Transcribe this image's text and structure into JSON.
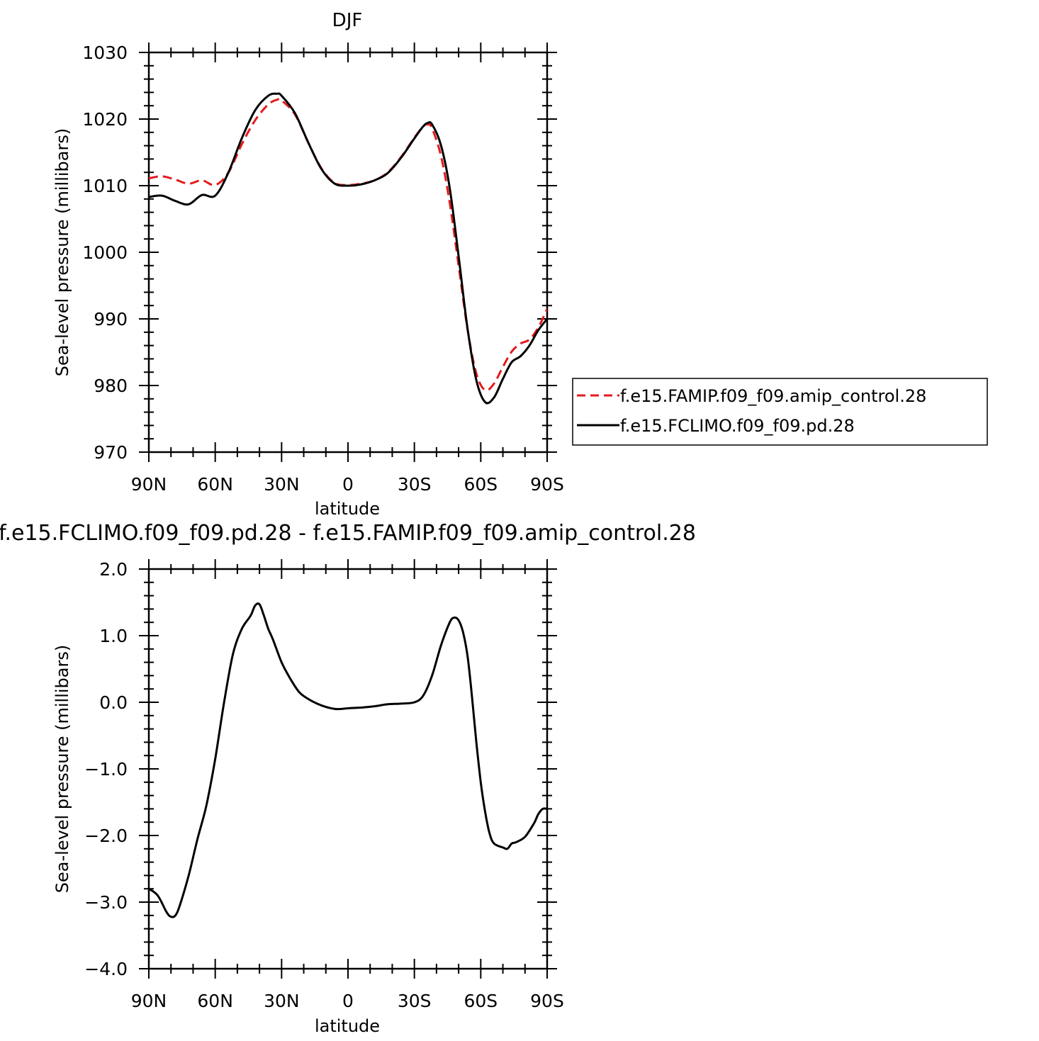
{
  "chart_data": [
    {
      "type": "line",
      "title": "DJF",
      "xlabel": "latitude",
      "ylabel": "Sea-level pressure (millibars)",
      "xlim": [
        90,
        -90
      ],
      "ylim": [
        970,
        1030
      ],
      "x_ticks": [
        {
          "value": 90,
          "label": "90N"
        },
        {
          "value": 60,
          "label": "60N"
        },
        {
          "value": 30,
          "label": "30N"
        },
        {
          "value": 0,
          "label": "0"
        },
        {
          "value": -30,
          "label": "30S"
        },
        {
          "value": -60,
          "label": "60S"
        },
        {
          "value": -90,
          "label": "90S"
        }
      ],
      "y_ticks": [
        {
          "value": 1030,
          "label": "1030"
        },
        {
          "value": 1020,
          "label": "1020"
        },
        {
          "value": 1010,
          "label": "1010"
        },
        {
          "value": 1000,
          "label": "1000"
        },
        {
          "value": 990,
          "label": "990"
        },
        {
          "value": 980,
          "label": "980"
        },
        {
          "value": 970,
          "label": "970"
        }
      ],
      "legend_position": "right",
      "x": [
        90,
        84,
        78,
        72,
        66,
        60,
        54,
        48,
        42,
        36,
        32,
        30,
        24,
        18,
        12,
        6,
        0,
        -6,
        -12,
        -18,
        -24,
        -30,
        -34,
        -36,
        -38,
        -42,
        -46,
        -50,
        -54,
        -58,
        -62,
        -66,
        -70,
        -74,
        -78,
        -82,
        -86,
        -90
      ],
      "series": [
        {
          "name": "f.e15.FAMIP.f09_f09.amip_control.28",
          "color": "#e41a1c",
          "dash": "dashed",
          "values": [
            1011.1,
            1011.4,
            1010.9,
            1010.3,
            1010.8,
            1010.1,
            1012.0,
            1016.2,
            1019.8,
            1022.2,
            1022.9,
            1022.8,
            1020.7,
            1016.5,
            1012.6,
            1010.4,
            1010.1,
            1010.3,
            1010.8,
            1012.0,
            1014.3,
            1017.2,
            1018.9,
            1019.2,
            1018.6,
            1014.5,
            1007.4,
            998.0,
            988.5,
            981.8,
            979.3,
            980.3,
            982.8,
            985.1,
            986.3,
            986.9,
            988.7,
            991.5
          ]
        },
        {
          "name": "f.e15.FCLIMO.f09_f09.pd.28",
          "color": "#000000",
          "dash": "solid",
          "values": [
            1008.3,
            1008.5,
            1007.7,
            1007.2,
            1008.6,
            1008.5,
            1012.0,
            1017.1,
            1021.3,
            1023.5,
            1023.8,
            1023.5,
            1020.9,
            1016.5,
            1012.5,
            1010.3,
            1010.0,
            1010.2,
            1010.8,
            1011.9,
            1014.2,
            1017.1,
            1018.9,
            1019.4,
            1019.2,
            1016.1,
            1009.6,
            999.4,
            988.6,
            980.8,
            977.5,
            978.2,
            981.0,
            983.5,
            984.4,
            986.0,
            988.3,
            990.0
          ]
        }
      ]
    },
    {
      "type": "line",
      "title": "f.e15.FCLIMO.f09_f09.pd.28 - f.e15.FAMIP.f09_f09.amip_control.28",
      "xlabel": "latitude",
      "ylabel": "Sea-level pressure (millibars)",
      "xlim": [
        90,
        -90
      ],
      "ylim": [
        -4.0,
        2.0
      ],
      "x_ticks": [
        {
          "value": 90,
          "label": "90N"
        },
        {
          "value": 60,
          "label": "60N"
        },
        {
          "value": 30,
          "label": "30N"
        },
        {
          "value": 0,
          "label": "0"
        },
        {
          "value": -30,
          "label": "30S"
        },
        {
          "value": -60,
          "label": "60S"
        },
        {
          "value": -90,
          "label": "90S"
        }
      ],
      "y_ticks": [
        {
          "value": 2.0,
          "label": "2.0"
        },
        {
          "value": 1.0,
          "label": "1.0"
        },
        {
          "value": 0.0,
          "label": "0.0"
        },
        {
          "value": -1.0,
          "label": "−1.0"
        },
        {
          "value": -2.0,
          "label": "−2.0"
        },
        {
          "value": -3.0,
          "label": "−3.0"
        },
        {
          "value": -4.0,
          "label": "−4.0"
        }
      ],
      "x": [
        90,
        86,
        82,
        80,
        78,
        76,
        72,
        68,
        64,
        60,
        56,
        52,
        48,
        44,
        42,
        40,
        38,
        36,
        34,
        30,
        26,
        22,
        18,
        14,
        10,
        6,
        3,
        0,
        -6,
        -12,
        -18,
        -24,
        -30,
        -34,
        -38,
        -42,
        -46,
        -48,
        -50,
        -52,
        -54,
        -56,
        -58,
        -60,
        -62,
        -64,
        -66,
        -70,
        -72,
        -74,
        -76,
        -80,
        -84,
        -86,
        -88,
        -90
      ],
      "series": [
        {
          "color": "#000000",
          "dash": "solid",
          "values": [
            -2.8,
            -2.9,
            -3.15,
            -3.22,
            -3.2,
            -3.05,
            -2.6,
            -2.05,
            -1.55,
            -0.85,
            0.0,
            0.72,
            1.1,
            1.3,
            1.45,
            1.47,
            1.3,
            1.1,
            0.95,
            0.6,
            0.35,
            0.15,
            0.05,
            -0.02,
            -0.07,
            -0.1,
            -0.1,
            -0.09,
            -0.08,
            -0.06,
            -0.03,
            -0.02,
            0.0,
            0.1,
            0.4,
            0.85,
            1.2,
            1.27,
            1.23,
            1.05,
            0.7,
            0.1,
            -0.6,
            -1.2,
            -1.65,
            -1.97,
            -2.12,
            -2.18,
            -2.2,
            -2.12,
            -2.1,
            -2.02,
            -1.82,
            -1.68,
            -1.6,
            -1.6
          ]
        }
      ]
    }
  ]
}
